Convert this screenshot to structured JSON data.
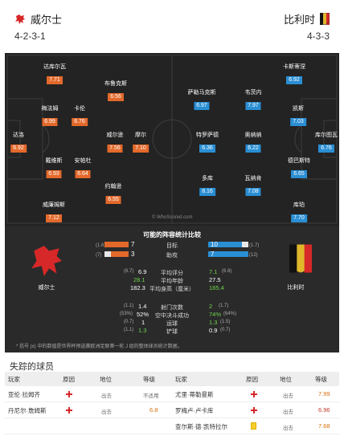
{
  "header": {
    "home": {
      "name": "威尔士",
      "formation": "4-2-3-1"
    },
    "away": {
      "name": "比利时",
      "formation": "4-3-3"
    }
  },
  "pitch": {
    "watermark": "© WhoScored.com",
    "home_players": [
      {
        "name": "达库尔瓦",
        "rating": "7.71"
      },
      {
        "name": "布鲁克斯",
        "rating": "6.56"
      },
      {
        "name": "梅法姆",
        "rating": "6.99"
      },
      {
        "name": "卡伦",
        "rating": "6.76"
      },
      {
        "name": "达洛",
        "rating": "6.92"
      },
      {
        "name": "威尔逊",
        "rating": "7.56"
      },
      {
        "name": "摩尔",
        "rating": "7.10"
      },
      {
        "name": "戴维斯",
        "rating": "6.93"
      },
      {
        "name": "安帕杜",
        "rating": "6.64"
      },
      {
        "name": "约翰逊",
        "rating": "6.55"
      },
      {
        "name": "威廉姆斯",
        "rating": "7.12"
      }
    ],
    "away_players": [
      {
        "name": "卡斯蒂涅",
        "rating": "6.92"
      },
      {
        "name": "萨勒马克斯",
        "rating": "6.97"
      },
      {
        "name": "韦茨内",
        "rating": "7.97"
      },
      {
        "name": "凯斯",
        "rating": "7.03"
      },
      {
        "name": "库尔图瓦",
        "rating": "6.76"
      },
      {
        "name": "特罗萨德",
        "rating": "6.36"
      },
      {
        "name": "奥纳纳",
        "rating": "6.22"
      },
      {
        "name": "德巴斯特",
        "rating": "6.65"
      },
      {
        "name": "多库",
        "rating": "8.16"
      },
      {
        "name": "瓦纳肯",
        "rating": "7.08"
      },
      {
        "name": "库珀",
        "rating": "7.70"
      }
    ]
  },
  "stats": {
    "title": "可能的阵容统计比较",
    "home_team": "威尔士",
    "away_team": "比利时",
    "goals": {
      "label": "目标",
      "home": "7",
      "away": "10",
      "home_prev": "(1.6)",
      "away_prev": "(1.7)",
      "home_frac": 0.41,
      "away_frac": 0.59
    },
    "assists": {
      "label": "助攻",
      "home": "3",
      "away": "7",
      "home_prev": "(7)",
      "away_prev": "(12)",
      "home_frac": 0.3,
      "away_frac": 0.7
    },
    "rating": {
      "label": "平均评分",
      "home": "6.9",
      "away": "7.1",
      "home_prev": "(6.7)",
      "away_prev": "(6.8)"
    },
    "age": {
      "label": "平均年龄",
      "home": "28.1",
      "away": "27.5"
    },
    "height": {
      "label": "平均身高（厘米）",
      "home": "182.3",
      "away": "185.4"
    },
    "shots": {
      "label": "射门次数",
      "home": "1.4",
      "away": "2",
      "home_prev": "(1.1)",
      "away_prev": "(1.7)"
    },
    "aerial": {
      "label": "空中决斗成功",
      "home": "52%",
      "away": "74%",
      "home_prev": "(53%)",
      "away_prev": "(64%)"
    },
    "dribbles": {
      "label": "运球",
      "home": "1",
      "away": "1.3",
      "home_prev": "(0.7)",
      "away_prev": "(1.5)"
    },
    "tackles": {
      "label": "铲球",
      "home": "1.3",
      "away": "0.9",
      "home_prev": "(1.1)",
      "away_prev": "(0.7)"
    },
    "note": "* 括号 (x) 中的数值是世界杯预选赛欧洲足联第一轮 J 组的整体球员统计数据。"
  },
  "missing": {
    "title": "失踪的球员",
    "headers": {
      "player": "玩家",
      "reason": "原因",
      "status": "地位",
      "rating": "等级"
    },
    "home": [
      {
        "player": "亚伦·拉姆齐",
        "status": "出去",
        "rating": "不适用"
      },
      {
        "player": "丹尼尔·詹姆斯",
        "status": "出去",
        "rating": "6.8"
      }
    ],
    "away": [
      {
        "player": "尤里·蒂勒曼斯",
        "status": "出去",
        "rating": "7.99"
      },
      {
        "player": "罗梅卢·卢卡库",
        "status": "出去",
        "rating": "6.96"
      },
      {
        "player": "查尔斯·德·凯特拉尔",
        "status": "出去",
        "rating": "7.68"
      }
    ]
  },
  "colors": {
    "home": "#e3692b",
    "away": "#2a8ed3",
    "pitch": "#232323",
    "green": "#6fd14b"
  }
}
